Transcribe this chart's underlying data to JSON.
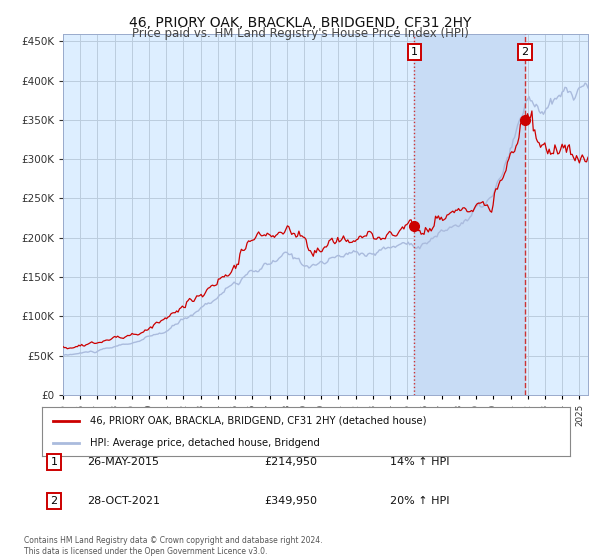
{
  "title": "46, PRIORY OAK, BRACKLA, BRIDGEND, CF31 2HY",
  "subtitle": "Price paid vs. HM Land Registry's House Price Index (HPI)",
  "red_label": "46, PRIORY OAK, BRACKLA, BRIDGEND, CF31 2HY (detached house)",
  "blue_label": "HPI: Average price, detached house, Bridgend",
  "annotation1_label": "1",
  "annotation1_date": "26-MAY-2015",
  "annotation1_price": 214950,
  "annotation1_hpi": "14% ↑ HPI",
  "annotation1_year": 2015.4,
  "annotation2_label": "2",
  "annotation2_date": "28-OCT-2021",
  "annotation2_price": 349950,
  "annotation2_hpi": "20% ↑ HPI",
  "annotation2_year": 2021.83,
  "ylim": [
    0,
    460000
  ],
  "xlim_start": 1995.0,
  "xlim_end": 2025.5,
  "footnote": "Contains HM Land Registry data © Crown copyright and database right 2024.\nThis data is licensed under the Open Government Licence v3.0.",
  "background_color": "#ffffff",
  "plot_background": "#ddeeff",
  "grid_color": "#bbccdd",
  "red_color": "#cc0000",
  "blue_color": "#aabbdd",
  "shaded_region_color": "#c8dcf5",
  "vline1_style": "dotted",
  "vline2_style": "dashed",
  "vline_color": "#cc3333",
  "title_fontsize": 10,
  "subtitle_fontsize": 8.5,
  "tick_label_color": "#333333",
  "yticks": [
    0,
    50000,
    100000,
    150000,
    200000,
    250000,
    300000,
    350000,
    400000,
    450000
  ]
}
